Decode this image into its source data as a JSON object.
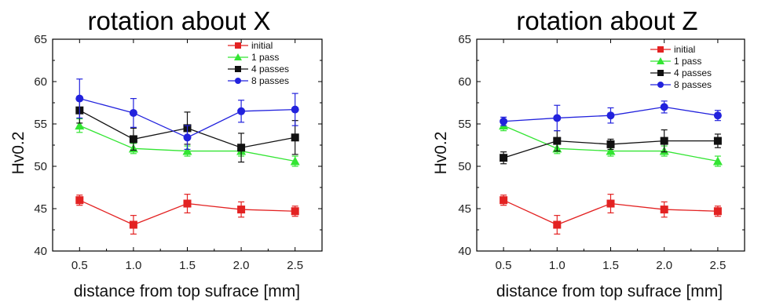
{
  "chart_data": [
    {
      "type": "line",
      "title": "rotation about X",
      "xlabel": "distance from top sufrace [mm]",
      "ylabel": "Hv0.2",
      "x": [
        0.5,
        1.0,
        1.5,
        2.0,
        2.5
      ],
      "xlim": [
        0.25,
        2.75
      ],
      "ylim": [
        40,
        65
      ],
      "xticks": [
        "0.5",
        "1.0",
        "1.5",
        "2.0",
        "2.5"
      ],
      "yticks": [
        "40",
        "45",
        "50",
        "55",
        "60",
        "65"
      ],
      "legend_position": "top-right",
      "series": [
        {
          "name": "initial",
          "color": "#e32222",
          "marker": "square",
          "values": [
            46.0,
            43.1,
            45.6,
            44.9,
            44.7
          ],
          "errors": [
            0.6,
            1.1,
            1.1,
            0.9,
            0.6
          ]
        },
        {
          "name": "1 pass",
          "color": "#33e533",
          "marker": "triangle",
          "values": [
            54.8,
            52.1,
            51.8,
            51.8,
            50.6
          ],
          "errors": [
            0.8,
            0.6,
            0.6,
            0.6,
            0.6
          ]
        },
        {
          "name": "4 passes",
          "color": "#111111",
          "marker": "square",
          "values": [
            56.6,
            53.2,
            54.5,
            52.2,
            53.4
          ],
          "errors": [
            1.5,
            1.3,
            1.9,
            1.7,
            2.0
          ]
        },
        {
          "name": "8 passes",
          "color": "#2222dd",
          "marker": "circle",
          "values": [
            58.0,
            56.3,
            53.4,
            56.5,
            56.7
          ],
          "errors": [
            2.3,
            1.7,
            1.4,
            1.3,
            1.9
          ]
        }
      ]
    },
    {
      "type": "line",
      "title": "rotation about Z",
      "xlabel": "distance from top sufrace [mm]",
      "ylabel": "Hv0.2",
      "x": [
        0.5,
        1.0,
        1.5,
        2.0,
        2.5
      ],
      "xlim": [
        0.25,
        2.75
      ],
      "ylim": [
        40,
        65
      ],
      "xticks": [
        "0.5",
        "1.0",
        "1.5",
        "2.0",
        "2.5"
      ],
      "yticks": [
        "40",
        "45",
        "50",
        "55",
        "60",
        "65"
      ],
      "legend_position": "top-right",
      "series": [
        {
          "name": "initial",
          "color": "#e32222",
          "marker": "square",
          "values": [
            46.0,
            43.1,
            45.6,
            44.9,
            44.7
          ],
          "errors": [
            0.6,
            1.1,
            1.1,
            0.9,
            0.6
          ]
        },
        {
          "name": "1 pass",
          "color": "#33e533",
          "marker": "triangle",
          "values": [
            54.8,
            52.1,
            51.8,
            51.8,
            50.6
          ],
          "errors": [
            0.6,
            0.6,
            0.6,
            0.6,
            0.6
          ]
        },
        {
          "name": "4 passes",
          "color": "#111111",
          "marker": "square",
          "values": [
            51.0,
            53.0,
            52.6,
            53.0,
            53.0
          ],
          "errors": [
            0.7,
            1.2,
            0.6,
            1.3,
            0.8
          ]
        },
        {
          "name": "8 passes",
          "color": "#2222dd",
          "marker": "circle",
          "values": [
            55.3,
            55.7,
            56.0,
            57.0,
            56.0
          ],
          "errors": [
            0.5,
            1.5,
            0.9,
            0.7,
            0.6
          ]
        }
      ]
    }
  ]
}
